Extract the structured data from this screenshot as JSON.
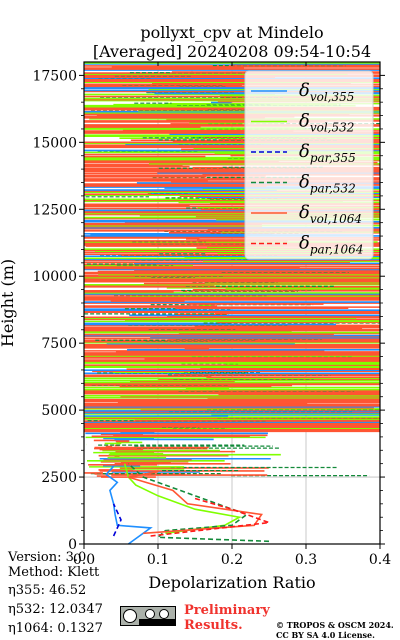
{
  "chart_data": {
    "type": "line",
    "title": [
      "pollyxt_cpv at Mindelo",
      "[Averaged] 20240208 09:54-10:54"
    ],
    "xlabel": "Depolarization Ratio",
    "ylabel": "Height (m)",
    "xlim": [
      0.0,
      0.4
    ],
    "ylim": [
      0,
      18000
    ],
    "x_ticks": [
      "0.0",
      "0.1",
      "0.2",
      "0.3",
      "0.4"
    ],
    "x_tick_values": [
      0.0,
      0.1,
      0.2,
      0.3,
      0.4
    ],
    "y_ticks": [
      "0",
      "2500",
      "5000",
      "7500",
      "10000",
      "12500",
      "15000",
      "17500"
    ],
    "y_tick_values": [
      0,
      2500,
      5000,
      7500,
      10000,
      12500,
      15000,
      17500
    ],
    "grid": true,
    "legend_position": "top-right",
    "series": [
      {
        "name": "δvol,355",
        "label_base": "δ",
        "label_sub": "vol,355",
        "color": "#1f8fff",
        "style": "solid",
        "points": [
          [
            0.06,
            0
          ],
          [
            0.09,
            600
          ],
          [
            0.045,
            700
          ],
          [
            0.042,
            1100
          ],
          [
            0.04,
            1500
          ],
          [
            0.035,
            2000
          ],
          [
            0.045,
            2300
          ],
          [
            0.03,
            2600
          ],
          [
            0.04,
            2900
          ]
        ]
      },
      {
        "name": "δvol,532",
        "label_base": "δ",
        "label_sub": "vol,532",
        "color": "#80ff00",
        "style": "solid",
        "points": [
          [
            0.11,
            400
          ],
          [
            0.19,
            700
          ],
          [
            0.21,
            1000
          ],
          [
            0.15,
            1300
          ],
          [
            0.1,
            1800
          ],
          [
            0.07,
            2200
          ],
          [
            0.06,
            2500
          ],
          [
            0.055,
            3000
          ]
        ]
      },
      {
        "name": "δpar,355",
        "label_base": "δ",
        "label_sub": "par,355",
        "color": "#0000d8",
        "style": "dashed",
        "points": [
          [
            0.04,
            300
          ],
          [
            0.05,
            900
          ],
          [
            0.04,
            1500
          ]
        ]
      },
      {
        "name": "δpar,532",
        "label_base": "δ",
        "label_sub": "par,532",
        "color": "#138a3a",
        "style": "dashed",
        "points": [
          [
            0.25,
            100
          ],
          [
            0.1,
            250
          ],
          [
            0.11,
            500
          ],
          [
            0.2,
            700
          ],
          [
            0.22,
            1100
          ],
          [
            0.18,
            1500
          ],
          [
            0.13,
            2000
          ],
          [
            0.08,
            2500
          ],
          [
            0.06,
            3000
          ]
        ]
      },
      {
        "name": "δvol,1064",
        "label_base": "δ",
        "label_sub": "vol,1064",
        "color": "#ff5533",
        "style": "solid",
        "points": [
          [
            0.08,
            400
          ],
          [
            0.23,
            700
          ],
          [
            0.24,
            1100
          ],
          [
            0.14,
            1500
          ],
          [
            0.12,
            2000
          ],
          [
            0.06,
            2500
          ],
          [
            0.1,
            2700
          ]
        ]
      },
      {
        "name": "δpar,1064",
        "label_base": "δ",
        "label_sub": "par,1064",
        "color": "#ff1a1a",
        "style": "dashed",
        "points": [
          [
            0.09,
            300
          ],
          [
            0.25,
            800
          ],
          [
            0.2,
            1300
          ],
          [
            0.15,
            1700
          ]
        ]
      }
    ]
  },
  "footer": {
    "version": "Version: 3.0",
    "method": "Method: Klett",
    "eta355": "η355:  46.52",
    "eta532": "η532: 12.0347",
    "eta1064": "η1064: 0.1327",
    "preliminary": [
      "Preliminary",
      "Results."
    ],
    "copyright": [
      "© TROPOS & OSCM 2024.",
      "CC BY SA 4.0 License."
    ],
    "license_badge": {
      "icon": "cc-by-sa-icon",
      "text_cc": "cc",
      "text_by": "BY",
      "text_sa": "SA"
    }
  }
}
